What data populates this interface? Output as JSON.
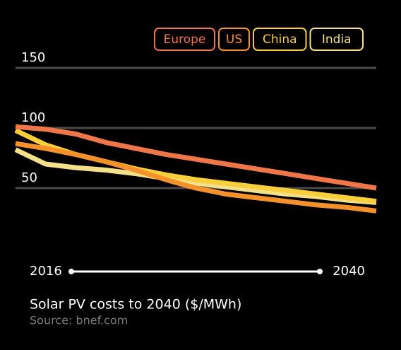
{
  "chart_data": {
    "type": "line",
    "title": "Solar PV costs to 2040 ($/MWh)",
    "source": "Source: bnef.com",
    "x": [
      2016,
      2018,
      2020,
      2022,
      2024,
      2026,
      2028,
      2030,
      2032,
      2034,
      2036,
      2038,
      2040
    ],
    "series": [
      {
        "name": "Europe",
        "color": "#ef7648",
        "values": [
          101,
          99,
          95,
          88,
          83,
          78,
          74,
          70,
          66,
          62,
          58,
          54,
          50
        ]
      },
      {
        "name": "US",
        "color": "#f5912a",
        "values": [
          87,
          83,
          78,
          72,
          65,
          57,
          50,
          45,
          42,
          39,
          36,
          34,
          31
        ]
      },
      {
        "name": "China",
        "color": "#f8cf3a",
        "values": [
          98,
          86,
          78,
          72,
          66,
          61,
          57,
          54,
          51,
          48,
          45,
          42,
          39
        ]
      },
      {
        "name": "India",
        "color": "#f4e08a",
        "values": [
          82,
          70,
          67,
          65,
          62,
          58,
          54,
          51,
          48,
          45,
          43,
          40,
          38
        ]
      }
    ],
    "xlim": [
      2016,
      2040
    ],
    "xticks": [
      2016,
      2040
    ],
    "ylim": [
      15,
      150
    ],
    "yticks": [
      50,
      100,
      150
    ],
    "grid": true
  }
}
